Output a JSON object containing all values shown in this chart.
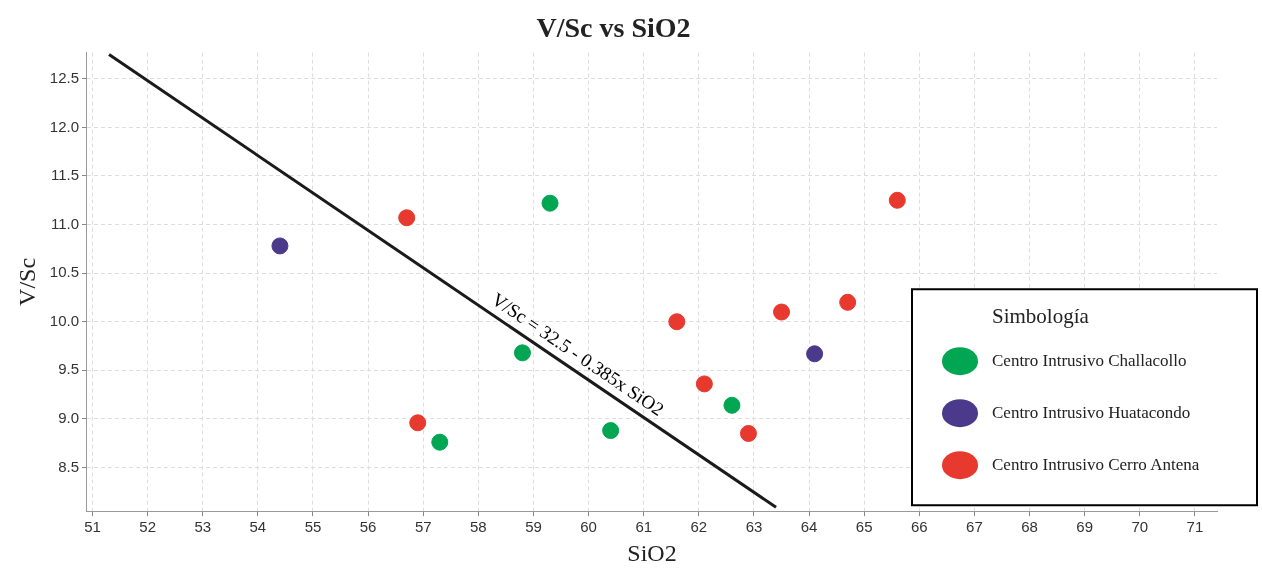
{
  "chart_data": {
    "type": "scatter",
    "title": "V/Sc vs SiO2",
    "xlabel": "SiO2",
    "ylabel": "V/Sc",
    "legend_title": "Simbología",
    "legend": "bottom right",
    "grid": true,
    "marker": "circle",
    "xlim": [
      50.9,
      71.4
    ],
    "xticks": [
      51,
      52,
      53,
      54,
      55,
      56,
      57,
      58,
      59,
      60,
      61,
      62,
      63,
      64,
      65,
      66,
      67,
      68,
      69,
      70,
      71
    ],
    "ylim": [
      8.05,
      12.77
    ],
    "yticks": [
      8.5,
      {
        "value": 9,
        "label": "9.0"
      },
      9.5,
      {
        "value": 10,
        "label": "10.0"
      },
      10.5,
      {
        "value": 11,
        "label": "11.0"
      },
      11.5,
      {
        "value": 12,
        "label": "12.0"
      },
      12.5
    ],
    "annotations": [
      "V/Sc = 32.5 - 0.385x SiO2"
    ],
    "series": [
      {
        "name": "Centro Intrusivo Challacollo",
        "color": "#00a651",
        "x": [
          59.3,
          58.8,
          57.3,
          60.4,
          62.6
        ],
        "values": [
          11.22,
          9.68,
          8.76,
          8.88,
          9.14
        ]
      },
      {
        "name": "Centro Intrusivo Huatacondo",
        "color": "#4b3a8c",
        "x": [
          54.4,
          64.1
        ],
        "values": [
          10.78,
          9.67
        ]
      },
      {
        "name": "Centro Intrusivo Cerro Antena",
        "color": "#e8392f",
        "x": [
          56.7,
          56.9,
          61.6,
          62.1,
          62.9,
          63.5,
          64.7,
          65.6
        ],
        "values": [
          11.07,
          8.96,
          10.0,
          9.36,
          8.85,
          10.1,
          10.2,
          11.25
        ]
      },
      {
        "type": "line",
        "color": "#1a1a1a",
        "marker": "none",
        "line_style": "solid",
        "x": [
          51.3,
          63.4
        ],
        "values": [
          12.75,
          8.09
        ]
      }
    ]
  }
}
